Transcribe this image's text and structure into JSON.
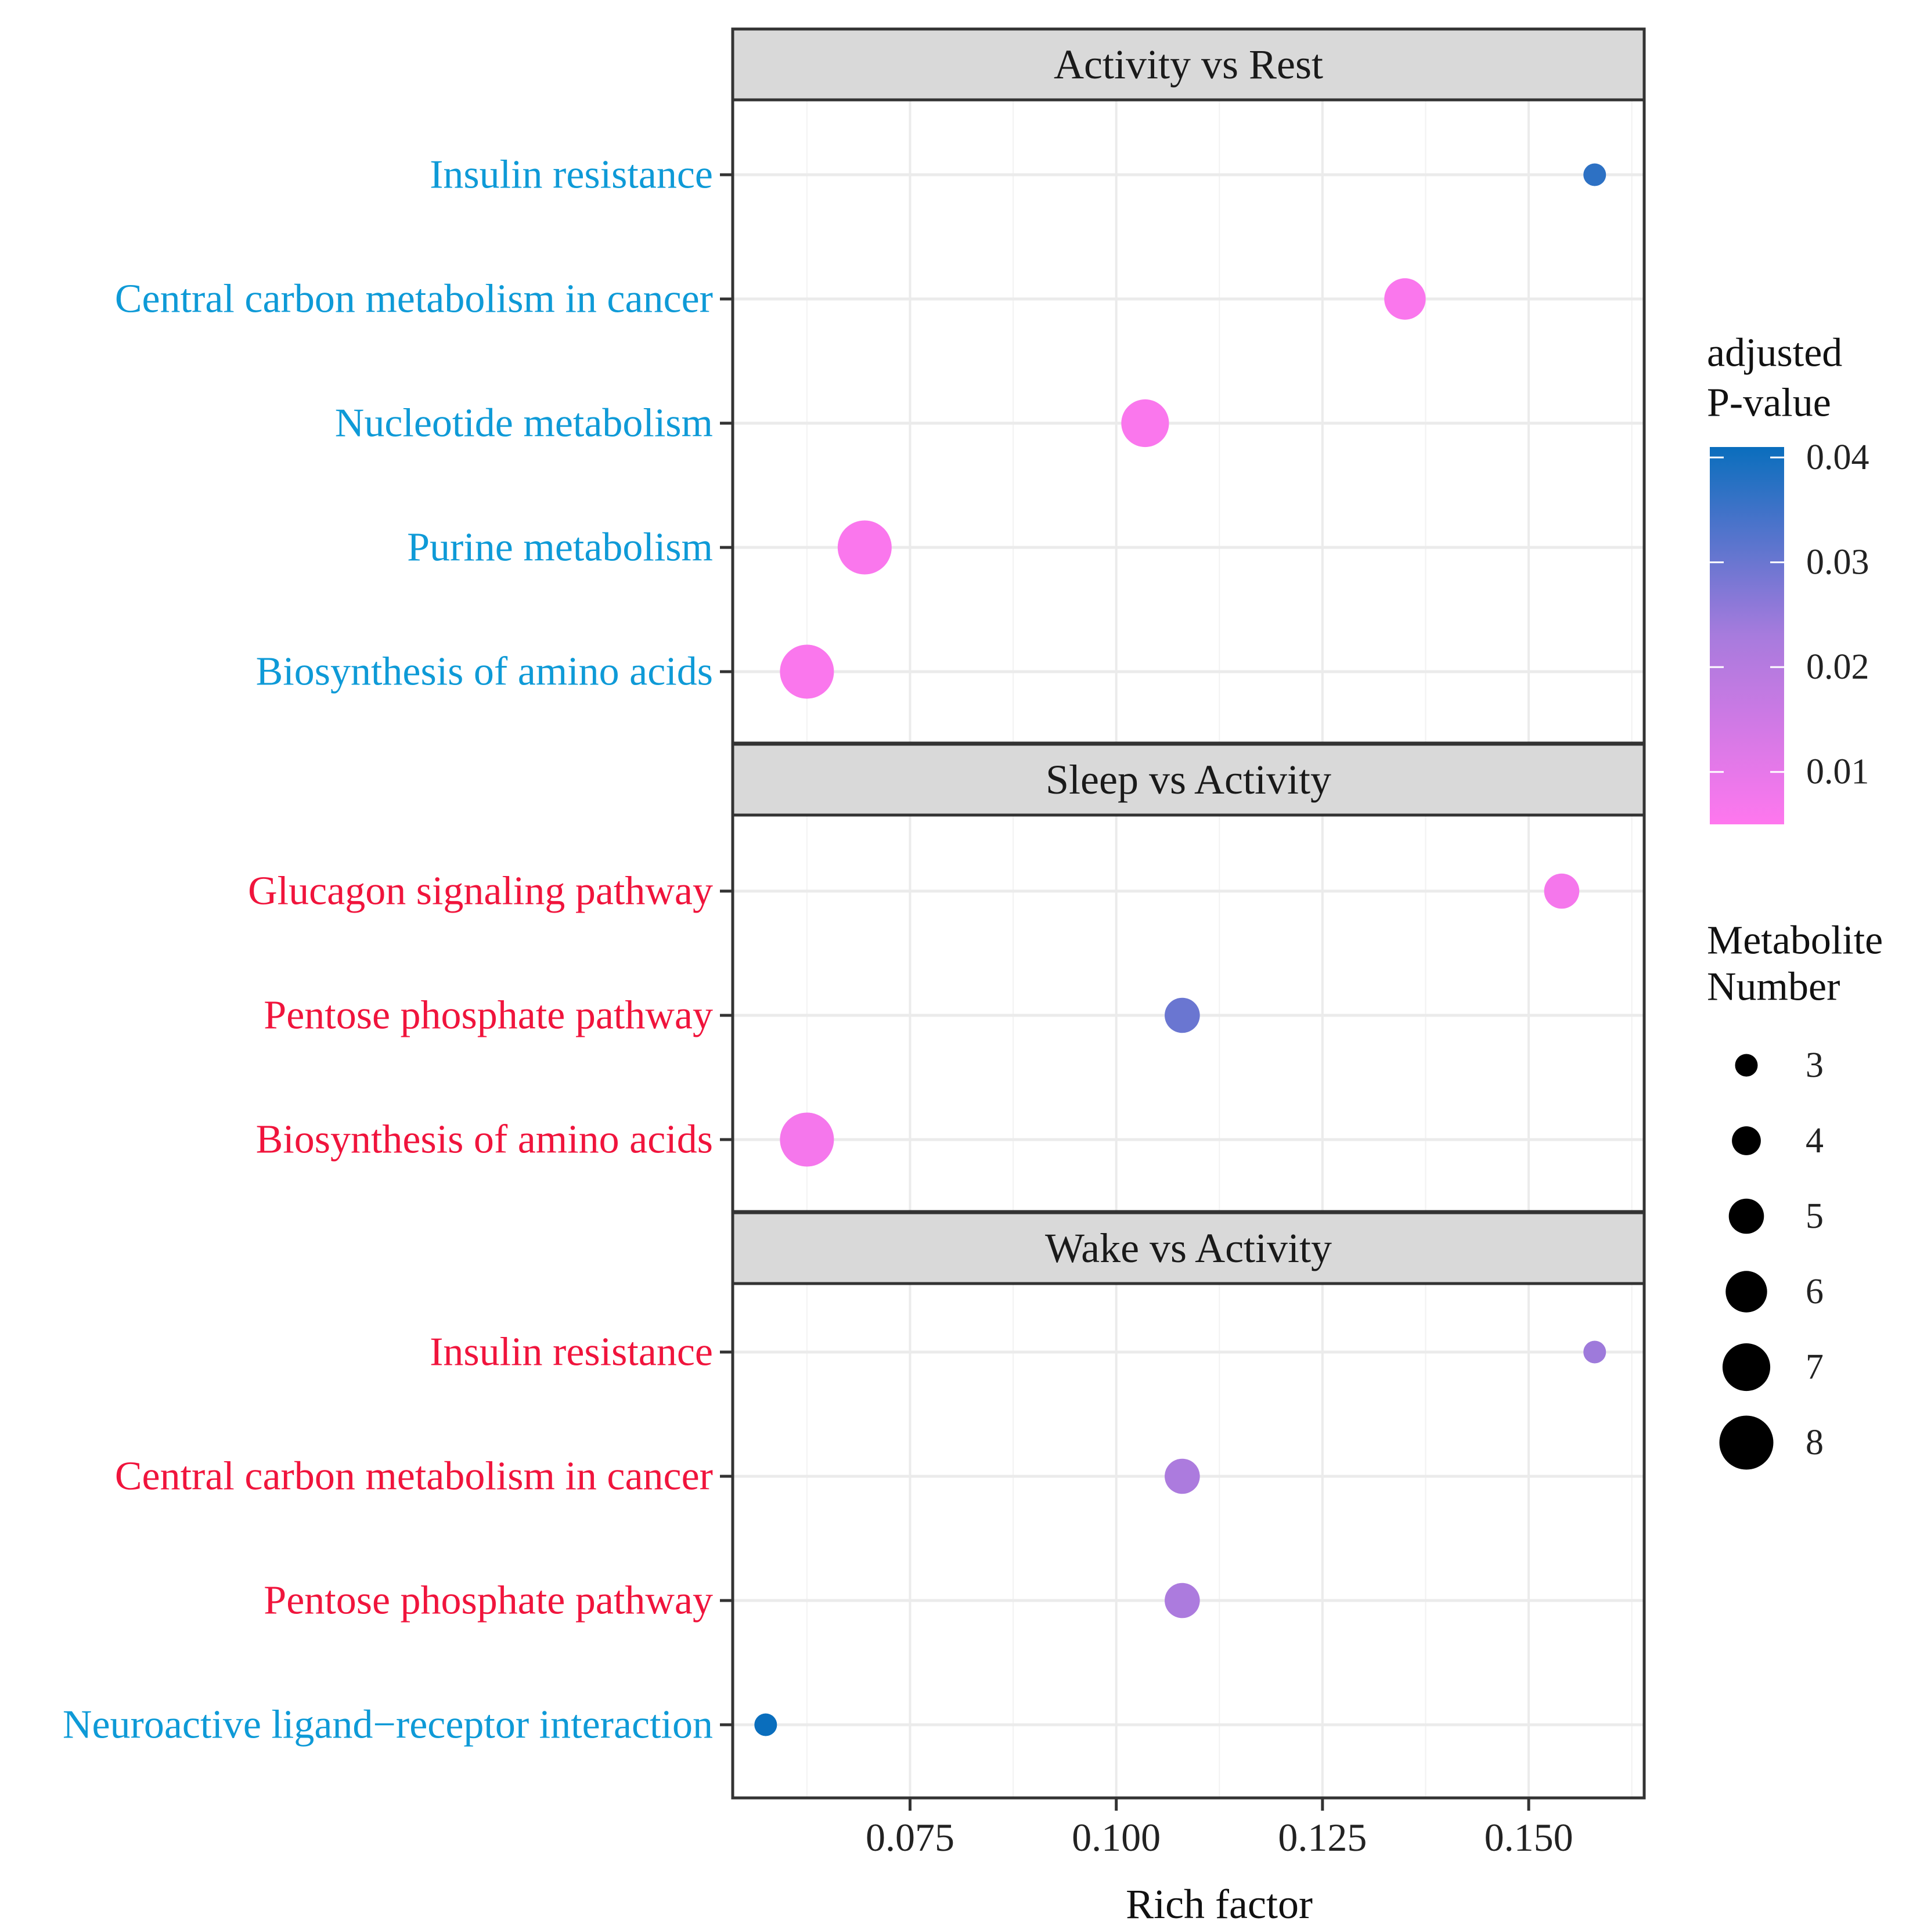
{
  "chart_data": {
    "type": "scatter",
    "subtype": "faceted-dot-plot",
    "xlabel": "Rich factor",
    "x_ticks": [
      0.075,
      0.1,
      0.125,
      0.15
    ],
    "x_tick_labels": [
      "0.075",
      "0.100",
      "0.125",
      "0.150"
    ],
    "xlim": [
      0.0535,
      0.164
    ],
    "facets": [
      {
        "title": "Activity vs Rest",
        "rows": [
          {
            "label": "Insulin resistance",
            "x": 0.158,
            "pvalue": 0.037,
            "count": 3,
            "label_color": "#0E9AD7"
          },
          {
            "label": "Central carbon metabolism in cancer",
            "x": 0.135,
            "pvalue": 0.006,
            "count": 6,
            "label_color": "#0E9AD7"
          },
          {
            "label": "Nucleotide metabolism",
            "x": 0.1035,
            "pvalue": 0.006,
            "count": 7,
            "label_color": "#0E9AD7"
          },
          {
            "label": "Purine metabolism",
            "x": 0.0695,
            "pvalue": 0.006,
            "count": 8,
            "label_color": "#0E9AD7"
          },
          {
            "label": "Biosynthesis of amino acids",
            "x": 0.0625,
            "pvalue": 0.006,
            "count": 8,
            "label_color": "#0E9AD7"
          }
        ]
      },
      {
        "title": "Sleep vs Activity",
        "rows": [
          {
            "label": "Glucagon signaling pathway",
            "x": 0.154,
            "pvalue": 0.007,
            "count": 5,
            "label_color": "#F0143C"
          },
          {
            "label": "Pentose phosphate pathway",
            "x": 0.108,
            "pvalue": 0.03,
            "count": 5,
            "label_color": "#F0143C"
          },
          {
            "label": "Biosynthesis of amino acids",
            "x": 0.0625,
            "pvalue": 0.007,
            "count": 8,
            "label_color": "#F0143C"
          }
        ]
      },
      {
        "title": "Wake vs Activity",
        "rows": [
          {
            "label": "Insulin resistance",
            "x": 0.158,
            "pvalue": 0.024,
            "count": 3,
            "label_color": "#F0143C"
          },
          {
            "label": "Central carbon metabolism in cancer",
            "x": 0.108,
            "pvalue": 0.022,
            "count": 5,
            "label_color": "#F0143C"
          },
          {
            "label": "Pentose phosphate pathway",
            "x": 0.108,
            "pvalue": 0.022,
            "count": 5,
            "label_color": "#F0143C"
          },
          {
            "label": "Neuroactive ligand−receptor interaction",
            "x": 0.0575,
            "pvalue": 0.041,
            "count": 3,
            "label_color": "#0E9AD7"
          }
        ]
      }
    ],
    "color_legend": {
      "title_line1": "adjusted",
      "title_line2": "P-value",
      "ticks": [
        0.04,
        0.03,
        0.02,
        0.01
      ],
      "tick_labels": [
        "0.04",
        "0.03",
        "0.02",
        "0.01"
      ],
      "range": [
        0.005,
        0.041
      ],
      "low_color": "#FF77EE",
      "mid_color": "#A77BDD",
      "high_color": "#0A6EBD"
    },
    "size_legend": {
      "title_line1": "Metabolite",
      "title_line2": "Number",
      "values": [
        3,
        4,
        5,
        6,
        7,
        8
      ],
      "labels": [
        "3",
        "4",
        "5",
        "6",
        "7",
        "8"
      ]
    }
  }
}
